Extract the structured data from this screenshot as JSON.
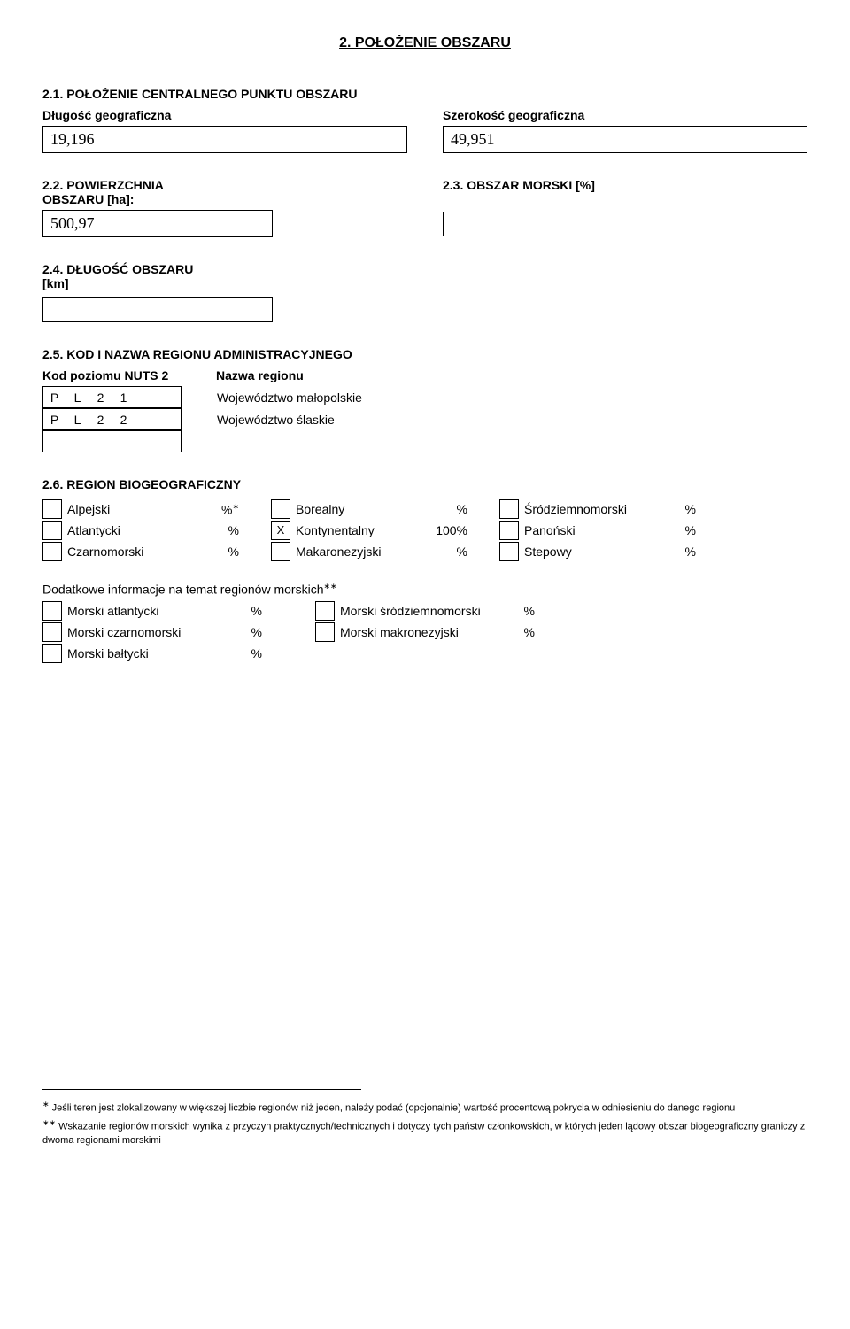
{
  "title": "2.  POŁOŻENIE OBSZARU",
  "s21": {
    "heading": "2.1. POŁOŻENIE CENTRALNEGO PUNKTU OBSZARU",
    "lon_label": "Długość geograficzna",
    "lon_value": "19,196",
    "lat_label": "Szerokość geograficzna",
    "lat_value": "49,951"
  },
  "s22": {
    "heading": "2.2. POWIERZCHNIA OBSZARU [ha]:",
    "value": "500,97"
  },
  "s23": {
    "heading": "2.3. OBSZAR MORSKI [%]",
    "value": ""
  },
  "s24": {
    "heading": "2.4. DŁUGOŚĆ OBSZARU [km]",
    "value": ""
  },
  "s25": {
    "heading": "2.5. KOD I NAZWA REGIONU ADMINISTRACYJNEGO",
    "col1": "Kod poziomu NUTS 2",
    "col2": "Nazwa regionu",
    "rows": [
      {
        "code": [
          "P",
          "L",
          "2",
          "1",
          "",
          ""
        ],
        "name": "Województwo małopolskie"
      },
      {
        "code": [
          "P",
          "L",
          "2",
          "2",
          "",
          ""
        ],
        "name": "Województwo ślaskie"
      },
      {
        "code": [
          "",
          "",
          "",
          "",
          "",
          ""
        ],
        "name": ""
      }
    ]
  },
  "s26": {
    "heading": "2.6. REGION BIOGEOGRAFICZNY",
    "groups": [
      [
        {
          "check": "",
          "label": "Alpejski",
          "pct": "%",
          "sup": "∗"
        },
        {
          "check": "",
          "label": "Atlantycki",
          "pct": "%"
        },
        {
          "check": "",
          "label": "Czarnomorski",
          "pct": "%"
        }
      ],
      [
        {
          "check": "",
          "label": "Borealny",
          "pct": "%"
        },
        {
          "check": "X",
          "label": "Kontynentalny",
          "pct": "100%"
        },
        {
          "check": "",
          "label": "Makaronezyjski",
          "pct": "%"
        }
      ],
      [
        {
          "check": "",
          "label": "Śródziemnomorski",
          "pct": "%"
        },
        {
          "check": "",
          "label": "Panoński",
          "pct": "%"
        },
        {
          "check": "",
          "label": "Stepowy",
          "pct": "%"
        }
      ]
    ],
    "marine": {
      "title_pre": "Dodatkowe informacje na temat regionów morskich",
      "title_sup": "∗∗",
      "left": [
        {
          "label": "Morski atlantycki",
          "pct": "%"
        },
        {
          "label": "Morski czarnomorski",
          "pct": "%"
        },
        {
          "label": "Morski bałtycki",
          "pct": "%"
        }
      ],
      "right": [
        {
          "label": "Morski śródziemnomorski",
          "pct": "%"
        },
        {
          "label": "Morski makronezyjski",
          "pct": "%"
        }
      ]
    }
  },
  "footnotes": {
    "fn1_mark": "∗",
    "fn1": " Jeśli teren jest zlokalizowany w większej liczbie regionów niż jeden, należy podać (opcjonalnie) wartość procentową pokrycia w odniesieniu do danego regionu",
    "fn2_mark": "∗∗",
    "fn2": " Wskazanie regionów morskich wynika z przyczyn praktycznych/technicznych i dotyczy tych państw członkowskich, w których jeden lądowy obszar biogeograficzny graniczy z dwoma regionami morskimi"
  }
}
